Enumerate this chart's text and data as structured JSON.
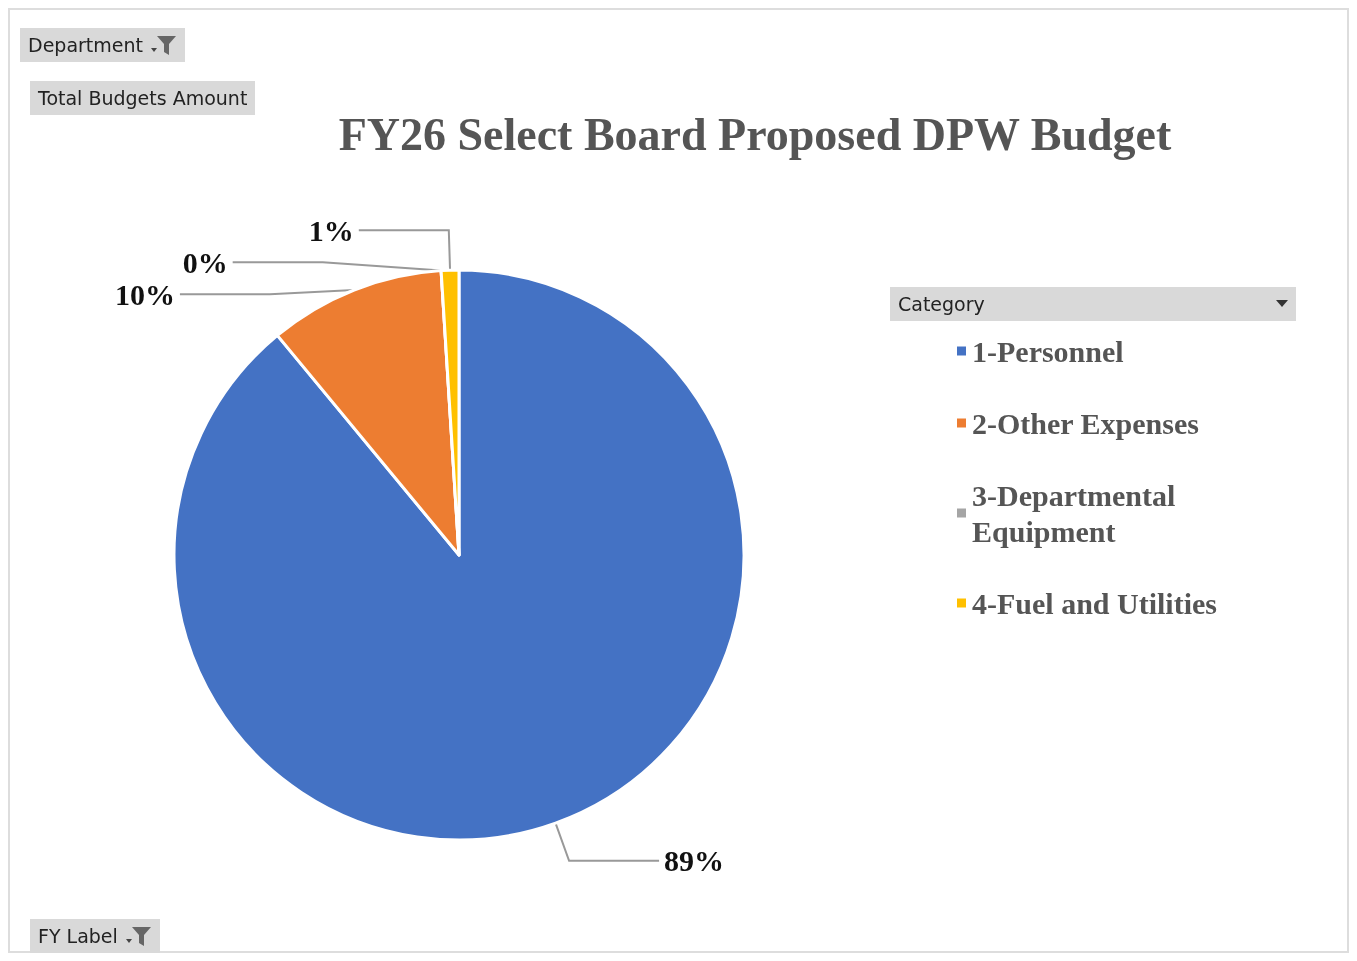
{
  "chart_data": {
    "type": "pie",
    "title": "FY26 Select Board Proposed DPW Budget",
    "categories": [
      "1-Personnel",
      "2-Other Expenses",
      "3-Departmental Equipment",
      "4-Fuel and Utilities"
    ],
    "values": [
      89,
      10,
      0,
      1
    ],
    "value_labels": [
      "89%",
      "10%",
      "0%",
      "1%"
    ],
    "colors": [
      "#4472c4",
      "#ed7d31",
      "#a5a5a5",
      "#ffc000"
    ],
    "legend_title": "Category",
    "legend": "right",
    "annotations": [
      "Department",
      "Total Budgets Amount",
      "FY Label"
    ]
  }
}
